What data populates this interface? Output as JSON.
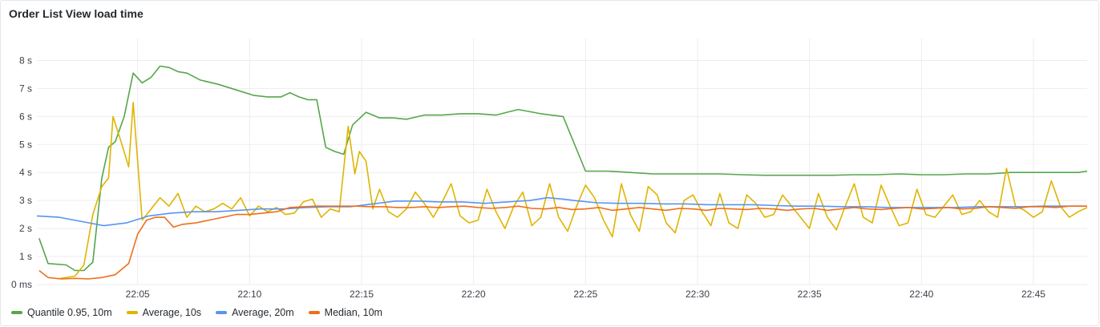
{
  "panel": {
    "title": "Order List View load time"
  },
  "chart_data": {
    "type": "line",
    "title": "Order List View load time",
    "xlabel": "",
    "ylabel": "",
    "ylim": [
      0,
      8.5
    ],
    "yunit": "s",
    "y_ticks": [
      0,
      1,
      2,
      3,
      4,
      5,
      6,
      7,
      8
    ],
    "y_tick_labels": [
      "0 ms",
      "1 s",
      "2 s",
      "3 s",
      "4 s",
      "5 s",
      "6 s",
      "7 s",
      "8 s"
    ],
    "xlim_minutes": [
      1320.5,
      1367.4
    ],
    "x_ticks_minutes": [
      1325,
      1330,
      1335,
      1340,
      1345,
      1350,
      1355,
      1360,
      1365
    ],
    "x_tick_labels": [
      "22:05",
      "22:10",
      "22:15",
      "22:20",
      "22:25",
      "22:30",
      "22:35",
      "22:40",
      "22:45"
    ],
    "grid": true,
    "legend_position": "bottom-left",
    "series": [
      {
        "name": "Quantile 0.95, 10m",
        "color": "#56a64b",
        "x": [
          1320.6,
          1321.0,
          1321.8,
          1322.2,
          1322.6,
          1323.0,
          1323.4,
          1323.7,
          1324.0,
          1324.4,
          1324.8,
          1325.2,
          1325.6,
          1326.0,
          1326.4,
          1326.8,
          1327.2,
          1327.8,
          1328.6,
          1329.4,
          1330.2,
          1330.8,
          1331.4,
          1331.8,
          1332.2,
          1332.6,
          1333.0,
          1333.4,
          1333.8,
          1334.2,
          1334.6,
          1335.2,
          1335.8,
          1336.4,
          1337.0,
          1337.8,
          1338.6,
          1339.4,
          1340.2,
          1341.0,
          1342.0,
          1343.0,
          1344.0,
          1345.0,
          1346.0,
          1347.0,
          1348.0,
          1349.0,
          1350.0,
          1351.0,
          1352.0,
          1353.0,
          1354.0,
          1355.0,
          1356.0,
          1357.0,
          1358.0,
          1359.0,
          1360.0,
          1361.0,
          1362.0,
          1363.0,
          1364.0,
          1365.0,
          1366.0,
          1367.0,
          1367.4
        ],
        "values": [
          1.65,
          0.75,
          0.7,
          0.5,
          0.5,
          0.8,
          3.8,
          4.9,
          5.1,
          6.0,
          7.55,
          7.2,
          7.4,
          7.8,
          7.75,
          7.6,
          7.55,
          7.3,
          7.15,
          6.95,
          6.75,
          6.7,
          6.7,
          6.85,
          6.7,
          6.6,
          6.6,
          4.9,
          4.75,
          4.65,
          5.7,
          6.15,
          5.95,
          5.95,
          5.9,
          6.05,
          6.05,
          6.1,
          6.1,
          6.05,
          6.25,
          6.1,
          6.0,
          4.05,
          4.05,
          4.0,
          3.95,
          3.95,
          3.95,
          3.95,
          3.92,
          3.9,
          3.9,
          3.9,
          3.9,
          3.92,
          3.92,
          3.95,
          3.92,
          3.92,
          3.95,
          3.95,
          4.0,
          4.0,
          4.0,
          4.0,
          4.05
        ]
      },
      {
        "name": "Average, 10s",
        "color": "#e0b400",
        "x": [
          1321.4,
          1322.2,
          1322.6,
          1323.0,
          1323.4,
          1323.7,
          1323.9,
          1324.3,
          1324.6,
          1324.8,
          1325.2,
          1325.5,
          1325.7,
          1326.0,
          1326.4,
          1326.8,
          1327.2,
          1327.6,
          1328.0,
          1328.4,
          1328.8,
          1329.2,
          1329.6,
          1330.0,
          1330.4,
          1330.8,
          1331.2,
          1331.6,
          1332.0,
          1332.4,
          1332.8,
          1333.2,
          1333.6,
          1334.0,
          1334.4,
          1334.7,
          1334.9,
          1335.2,
          1335.5,
          1335.8,
          1336.2,
          1336.6,
          1337.0,
          1337.4,
          1337.8,
          1338.2,
          1338.6,
          1339.0,
          1339.4,
          1339.8,
          1340.2,
          1340.6,
          1341.0,
          1341.4,
          1341.8,
          1342.2,
          1342.6,
          1343.0,
          1343.4,
          1343.8,
          1344.2,
          1344.6,
          1345.0,
          1345.4,
          1345.8,
          1346.2,
          1346.6,
          1347.0,
          1347.4,
          1347.8,
          1348.2,
          1348.6,
          1349.0,
          1349.4,
          1349.8,
          1350.2,
          1350.6,
          1351.0,
          1351.4,
          1351.8,
          1352.2,
          1352.6,
          1353.0,
          1353.4,
          1353.8,
          1354.2,
          1354.6,
          1355.0,
          1355.4,
          1355.8,
          1356.2,
          1356.6,
          1357.0,
          1357.4,
          1357.8,
          1358.2,
          1358.6,
          1359.0,
          1359.4,
          1359.8,
          1360.2,
          1360.6,
          1361.0,
          1361.4,
          1361.8,
          1362.2,
          1362.6,
          1363.0,
          1363.4,
          1363.8,
          1364.2,
          1364.6,
          1365.0,
          1365.4,
          1365.8,
          1366.2,
          1366.6,
          1367.0,
          1367.4
        ],
        "values": [
          0.2,
          0.3,
          0.7,
          2.5,
          3.5,
          3.8,
          6.0,
          5.0,
          4.2,
          6.5,
          2.3,
          2.6,
          2.8,
          3.1,
          2.8,
          3.25,
          2.4,
          2.8,
          2.6,
          2.7,
          2.9,
          2.7,
          3.1,
          2.45,
          2.8,
          2.6,
          2.75,
          2.5,
          2.55,
          2.95,
          3.05,
          2.4,
          2.7,
          2.6,
          5.65,
          3.95,
          4.75,
          4.4,
          2.7,
          3.4,
          2.6,
          2.4,
          2.7,
          3.3,
          2.9,
          2.4,
          2.95,
          3.6,
          2.45,
          2.2,
          2.3,
          3.4,
          2.6,
          2.0,
          2.8,
          3.3,
          2.1,
          2.4,
          3.6,
          2.4,
          1.9,
          2.8,
          3.55,
          3.1,
          2.3,
          1.7,
          3.6,
          2.5,
          1.9,
          3.5,
          3.2,
          2.2,
          1.85,
          3.0,
          3.2,
          2.6,
          2.1,
          3.25,
          2.2,
          2.0,
          3.2,
          2.9,
          2.4,
          2.5,
          3.2,
          2.8,
          2.4,
          2.0,
          3.25,
          2.4,
          1.95,
          2.8,
          3.6,
          2.4,
          2.2,
          3.55,
          2.8,
          2.1,
          2.2,
          3.4,
          2.5,
          2.4,
          2.8,
          3.2,
          2.5,
          2.6,
          3.0,
          2.6,
          2.4,
          4.15,
          2.8,
          2.65,
          2.4,
          2.6,
          3.7,
          2.8,
          2.4,
          2.6,
          2.75
        ],
        "note_values_series2": ""
      },
      {
        "name": "Average, 20m",
        "color": "#5794f2",
        "x": [
          1320.5,
          1321.5,
          1322.5,
          1323.5,
          1324.5,
          1325.5,
          1326.5,
          1327.5,
          1328.5,
          1329.5,
          1330.5,
          1331.5,
          1332.5,
          1333.5,
          1334.5,
          1335.5,
          1336.5,
          1337.5,
          1338.5,
          1339.5,
          1340.5,
          1341.5,
          1342.5,
          1343.3,
          1344.0,
          1344.5,
          1345.5,
          1346.5,
          1347.5,
          1348.5,
          1349.5,
          1350.5,
          1351.5,
          1352.5,
          1353.5,
          1354.5,
          1355.5,
          1356.5,
          1357.5,
          1358.5,
          1359.5,
          1360.5,
          1361.5,
          1362.5,
          1363.5,
          1364.5,
          1365.5,
          1366.5,
          1367.4
        ],
        "values": [
          2.45,
          2.4,
          2.25,
          2.1,
          2.2,
          2.45,
          2.55,
          2.6,
          2.6,
          2.65,
          2.7,
          2.7,
          2.75,
          2.78,
          2.78,
          2.88,
          2.98,
          2.98,
          2.95,
          2.95,
          2.9,
          2.95,
          3.0,
          3.1,
          3.05,
          3.0,
          2.92,
          2.9,
          2.9,
          2.88,
          2.88,
          2.85,
          2.85,
          2.85,
          2.82,
          2.8,
          2.8,
          2.78,
          2.78,
          2.75,
          2.75,
          2.75,
          2.75,
          2.78,
          2.78,
          2.78,
          2.8,
          2.8,
          2.8
        ]
      },
      {
        "name": "Median, 10m",
        "color": "#ef6e1d",
        "x": [
          1320.6,
          1321.0,
          1321.6,
          1322.2,
          1322.8,
          1323.4,
          1324.0,
          1324.6,
          1325.0,
          1325.4,
          1325.8,
          1326.2,
          1326.6,
          1327.0,
          1327.6,
          1328.2,
          1328.8,
          1329.4,
          1330.0,
          1330.6,
          1331.2,
          1331.8,
          1332.4,
          1333.0,
          1333.6,
          1334.2,
          1334.8,
          1335.4,
          1336.0,
          1336.6,
          1337.2,
          1337.8,
          1338.4,
          1339.0,
          1339.6,
          1340.2,
          1340.8,
          1341.4,
          1342.0,
          1342.6,
          1343.2,
          1343.8,
          1344.4,
          1345.0,
          1345.6,
          1346.2,
          1346.8,
          1347.4,
          1348.0,
          1348.6,
          1349.2,
          1349.8,
          1350.4,
          1351.0,
          1351.6,
          1352.2,
          1352.8,
          1353.4,
          1354.0,
          1354.6,
          1355.2,
          1355.8,
          1356.4,
          1357.0,
          1357.6,
          1358.2,
          1358.8,
          1359.4,
          1360.0,
          1360.6,
          1361.2,
          1361.8,
          1362.4,
          1363.0,
          1363.6,
          1364.2,
          1364.8,
          1365.4,
          1366.0,
          1366.6,
          1367.4
        ],
        "values": [
          0.5,
          0.25,
          0.2,
          0.22,
          0.2,
          0.25,
          0.35,
          0.75,
          1.8,
          2.3,
          2.4,
          2.4,
          2.05,
          2.15,
          2.2,
          2.3,
          2.4,
          2.5,
          2.5,
          2.55,
          2.6,
          2.75,
          2.78,
          2.8,
          2.8,
          2.8,
          2.8,
          2.78,
          2.78,
          2.75,
          2.75,
          2.78,
          2.75,
          2.78,
          2.8,
          2.75,
          2.72,
          2.75,
          2.8,
          2.72,
          2.7,
          2.75,
          2.68,
          2.7,
          2.75,
          2.65,
          2.7,
          2.75,
          2.7,
          2.65,
          2.72,
          2.7,
          2.65,
          2.72,
          2.7,
          2.68,
          2.72,
          2.7,
          2.65,
          2.7,
          2.72,
          2.65,
          2.7,
          2.75,
          2.7,
          2.68,
          2.72,
          2.75,
          2.7,
          2.72,
          2.75,
          2.7,
          2.72,
          2.78,
          2.75,
          2.72,
          2.78,
          2.78,
          2.75,
          2.8,
          2.8
        ]
      }
    ]
  }
}
